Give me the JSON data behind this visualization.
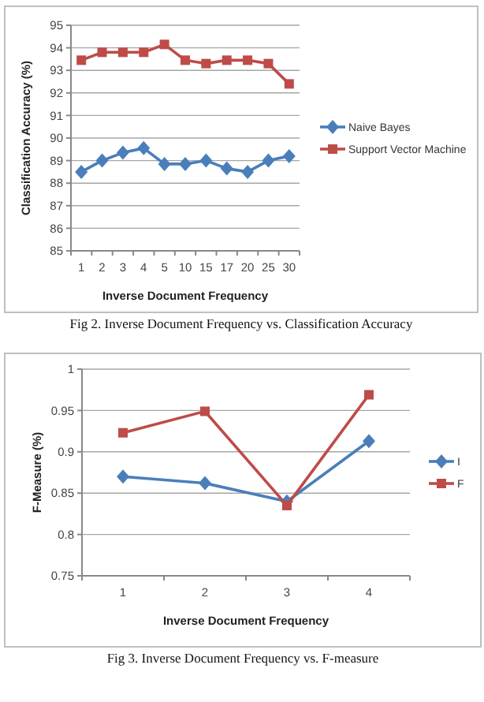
{
  "chart_data": [
    {
      "type": "line",
      "categories": [
        "1",
        "2",
        "3",
        "4",
        "5",
        "10",
        "15",
        "17",
        "20",
        "25",
        "30"
      ],
      "xlabel": "Inverse Document Frequency",
      "ylabel": "Classification Accuracy (%)",
      "ylim": [
        85,
        95
      ],
      "yticks": [
        85,
        86,
        87,
        88,
        89,
        90,
        91,
        92,
        93,
        94,
        95
      ],
      "grid": "y",
      "legend": "right",
      "annotations": [
        "Fig 2. Inverse Document Frequency vs. Classification Accuracy"
      ],
      "series": [
        {
          "name": "Naive Bayes",
          "color": "#4a7ebb",
          "marker": "diamond",
          "values": [
            88.5,
            89.0,
            89.35,
            89.55,
            88.85,
            88.85,
            89.0,
            88.65,
            88.5,
            89.0,
            89.2
          ]
        },
        {
          "name": "Support Vector Machine",
          "color": "#be4b48",
          "marker": "square",
          "values": [
            93.45,
            93.8,
            93.8,
            93.8,
            94.15,
            93.45,
            93.3,
            93.45,
            93.45,
            93.3,
            92.4
          ]
        }
      ]
    },
    {
      "type": "line",
      "categories": [
        "1",
        "2",
        "3",
        "4"
      ],
      "xlabel": "Inverse Document Frequency",
      "ylabel": "F-Measure (%)",
      "ylim": [
        0.75,
        1
      ],
      "yticks": [
        0.75,
        0.8,
        0.85,
        0.9,
        0.95,
        1
      ],
      "grid": "y",
      "legend": "right",
      "annotations": [
        "Fig 3. Inverse Document Frequency vs. F-measure"
      ],
      "series": [
        {
          "name": "I",
          "color": "#4a7ebb",
          "marker": "diamond",
          "values": [
            0.87,
            0.862,
            0.84,
            0.913
          ]
        },
        {
          "name": "F",
          "color": "#be4b48",
          "marker": "square",
          "values": [
            0.923,
            0.949,
            0.835,
            0.969
          ]
        }
      ]
    }
  ]
}
